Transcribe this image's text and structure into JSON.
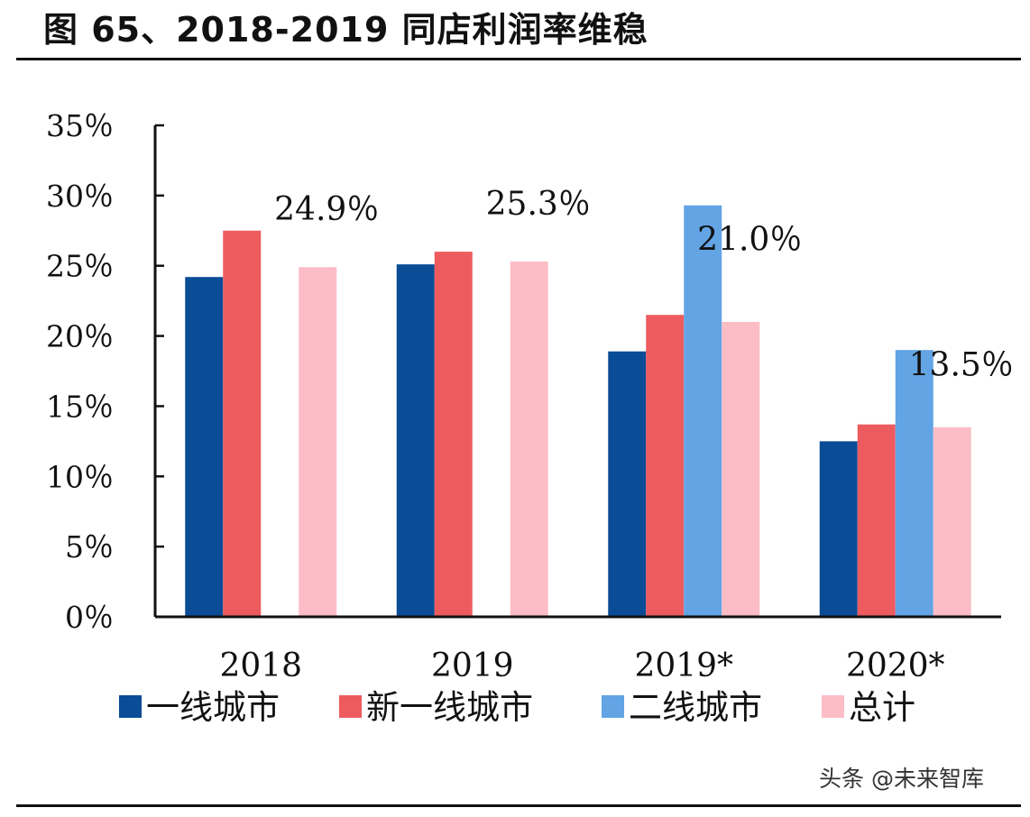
{
  "figure": {
    "title": "图 65、2018-2019 同店利润率维稳",
    "watermark": "头条 @未来智库"
  },
  "chart_data": {
    "type": "bar",
    "categories": [
      "2018",
      "2019",
      "2019*",
      "2020*"
    ],
    "series": [
      {
        "name": "一线城市",
        "color": "#0A4C96",
        "values": [
          24.2,
          25.1,
          18.9,
          12.5
        ]
      },
      {
        "name": "新一线城市",
        "color": "#EE5B5E",
        "values": [
          27.5,
          26.0,
          21.5,
          13.7
        ]
      },
      {
        "name": "二线城市",
        "color": "#62A4E4",
        "values": [
          null,
          null,
          29.3,
          19.0
        ]
      },
      {
        "name": "总计",
        "color": "#FCBDC6",
        "values": [
          24.9,
          25.3,
          21.0,
          13.5
        ]
      }
    ],
    "data_labels": [
      "24.9％",
      "25.3％",
      "21.0％",
      "13.5％"
    ],
    "y_ticks": [
      0,
      5,
      10,
      15,
      20,
      25,
      30,
      35
    ],
    "y_tick_labels": [
      "0％",
      "5％",
      "10％",
      "15％",
      "20％",
      "25％",
      "30％",
      "35％"
    ],
    "ylim": [
      0,
      35
    ],
    "xlabel": "",
    "ylabel": "",
    "grid": false,
    "legend_position": "bottom"
  }
}
